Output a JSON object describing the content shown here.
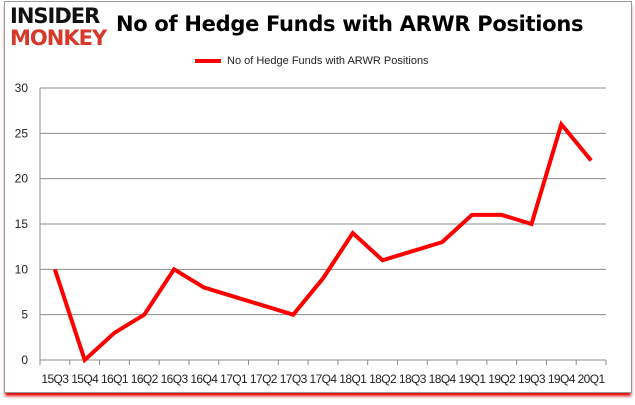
{
  "logo": {
    "line1": "INSIDER",
    "line2": "MONKEY"
  },
  "chart_data": {
    "type": "line",
    "title": "No of Hedge Funds with ARWR Positions",
    "xlabel": "",
    "ylabel": "",
    "categories": [
      "15Q3",
      "15Q4",
      "16Q1",
      "16Q2",
      "16Q3",
      "16Q4",
      "17Q1",
      "17Q2",
      "17Q3",
      "17Q4",
      "18Q1",
      "18Q2",
      "18Q3",
      "18Q4",
      "19Q1",
      "19Q2",
      "19Q3",
      "19Q4",
      "20Q1"
    ],
    "series": [
      {
        "name": "No of Hedge Funds with ARWR Positions",
        "color": "#ff0000",
        "values": [
          10,
          0,
          3,
          5,
          10,
          8,
          7,
          6,
          5,
          9,
          14,
          11,
          12,
          13,
          16,
          16,
          15,
          26,
          22
        ]
      }
    ],
    "ylim": [
      0,
      30
    ],
    "yticks": [
      0,
      5,
      10,
      15,
      20,
      25,
      30
    ],
    "grid": true,
    "legend": "top-center"
  }
}
